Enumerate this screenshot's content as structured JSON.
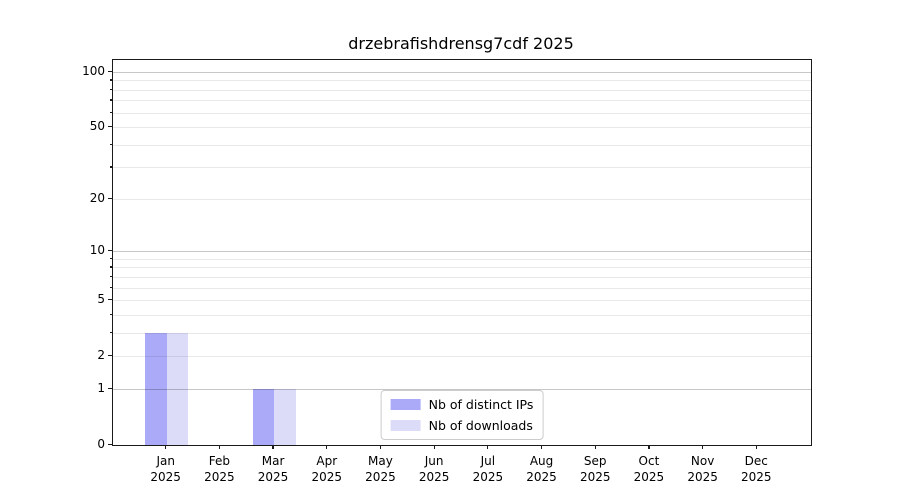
{
  "figure": {
    "title": "drzebrafishdrensg7cdf 2025"
  },
  "chart_data": {
    "type": "bar",
    "title": "drzebrafishdrensg7cdf 2025",
    "categories": [
      "Jan",
      "Feb",
      "Mar",
      "Apr",
      "May",
      "Jun",
      "Jul",
      "Aug",
      "Sep",
      "Oct",
      "Nov",
      "Dec"
    ],
    "year": "2025",
    "series": [
      {
        "name": "Nb of distinct IPs",
        "color": "#aaaaf8",
        "values": [
          3,
          0,
          1,
          0,
          0,
          0,
          0,
          0,
          0,
          0,
          0,
          0
        ]
      },
      {
        "name": "Nb of downloads",
        "color": "#dcdcf9",
        "values": [
          3,
          0,
          1,
          0,
          0,
          0,
          0,
          0,
          0,
          0,
          0,
          0
        ]
      }
    ],
    "xlabel": "",
    "ylabel": "",
    "y_axis": {
      "scale": "log1p",
      "range": [
        0,
        116
      ],
      "tick_labels": [
        100,
        50,
        20,
        10,
        5,
        2,
        1,
        0
      ],
      "major_gridlines": [
        1,
        10,
        100
      ],
      "minor_gridlines": [
        2,
        3,
        4,
        5,
        6,
        7,
        8,
        9,
        20,
        30,
        40,
        50,
        60,
        70,
        80,
        90
      ]
    },
    "legend": {
      "position": "lower center inside"
    },
    "grid": true
  },
  "colors": {
    "bar_distinct_ips": "#aaaaf8",
    "bar_downloads": "#dcdcf9",
    "major_grid": "#c8c8c8",
    "minor_grid": "#eaeaea",
    "spine": "#1a1a1a",
    "legend_border": "#cccccc",
    "background": "#ffffff"
  }
}
